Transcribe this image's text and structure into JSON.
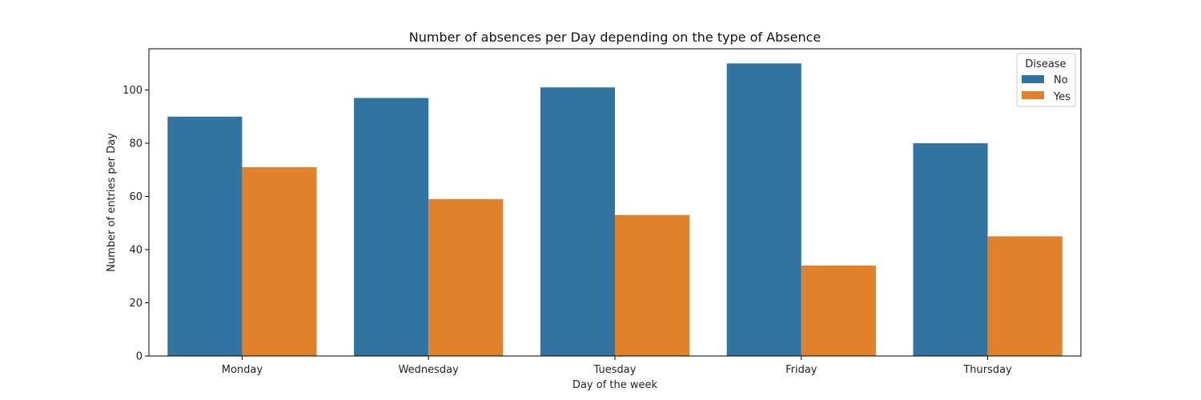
{
  "chart_data": {
    "type": "bar",
    "title": "Number of absences per Day depending on the type of Absence",
    "xlabel": "Day of the week",
    "ylabel": "Number of entries per Day",
    "categories": [
      "Monday",
      "Wednesday",
      "Tuesday",
      "Friday",
      "Thursday"
    ],
    "series": [
      {
        "name": "No",
        "values": [
          90,
          97,
          101,
          110,
          80
        ],
        "color": "#3274a1"
      },
      {
        "name": "Yes",
        "values": [
          71,
          59,
          53,
          34,
          45
        ],
        "color": "#e1812c"
      }
    ],
    "ylim": [
      0,
      115.5
    ],
    "yticks": [
      0,
      20,
      40,
      60,
      80,
      100
    ],
    "grid": false,
    "legend": {
      "title": "Disease",
      "position": "top-right"
    }
  }
}
